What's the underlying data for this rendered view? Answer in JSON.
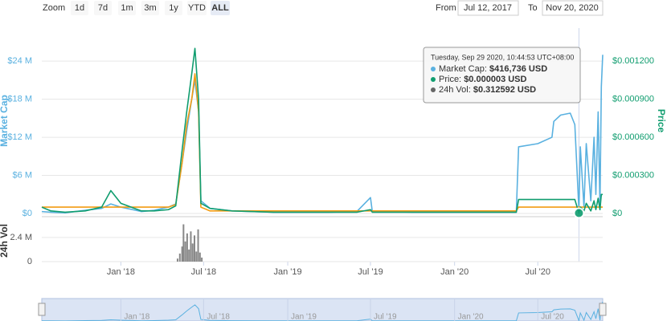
{
  "range_selector": {
    "zoom_label": "Zoom",
    "buttons": [
      "1d",
      "7d",
      "1m",
      "3m",
      "1y",
      "YTD",
      "ALL"
    ],
    "selected": "ALL",
    "from_label": "From",
    "from": "Jul 12, 2017",
    "to_label": "To",
    "to": "Nov 20, 2020"
  },
  "tooltip": {
    "title": "Tuesday, Sep 29 2020, 10:44:53 UTC+08:00",
    "items": [
      {
        "label": "Market Cap:",
        "value": "$416,736 USD",
        "color": "#5ab1e0"
      },
      {
        "label": "Price:",
        "value": "$0.000003 USD",
        "color": "#109d6f"
      },
      {
        "label": "24h Vol:",
        "value": "$0.312592 USD",
        "color": "#666666"
      }
    ]
  },
  "chart_data": [
    {
      "type": "line",
      "ylabel": "Market Cap",
      "y2label": "Price",
      "xlim": [
        "2017-07-12",
        "2020-11-20"
      ],
      "xticks": [
        {
          "value": "2018-01-01",
          "label": "Jan '18"
        },
        {
          "value": "2018-07-01",
          "label": "Jul '18"
        },
        {
          "value": "2019-01-01",
          "label": "Jan '19"
        },
        {
          "value": "2019-07-01",
          "label": "Jul '19"
        },
        {
          "value": "2020-01-01",
          "label": "Jan '20"
        },
        {
          "value": "2020-07-01",
          "label": "Jul '20"
        }
      ],
      "ylim": [
        0,
        29200000
      ],
      "yticks": [
        {
          "value": 0,
          "label": "$0"
        },
        {
          "value": 6000000,
          "label": "$6 M"
        },
        {
          "value": 12000000,
          "label": "$12 M"
        },
        {
          "value": 18000000,
          "label": "$18 M"
        },
        {
          "value": 24000000,
          "label": "$24 M"
        }
      ],
      "y2lim": [
        0,
        0.00146
      ],
      "y2ticks": [
        {
          "value": 0,
          "label": "$0"
        },
        {
          "value": 0.0003,
          "label": "$0.000300"
        },
        {
          "value": 0.0006,
          "label": "$0.000600"
        },
        {
          "value": 0.0009,
          "label": "$0.000900"
        },
        {
          "value": 0.0012,
          "label": "$0.001200"
        }
      ],
      "grid": true,
      "x": [
        "2017-07-12",
        "2017-08-01",
        "2017-09-01",
        "2017-10-15",
        "2017-11-20",
        "2017-12-10",
        "2018-01-01",
        "2018-02-15",
        "2018-03-15",
        "2018-04-15",
        "2018-05-01",
        "2018-05-15",
        "2018-05-25",
        "2018-06-05",
        "2018-06-12",
        "2018-06-20",
        "2018-06-25",
        "2018-07-15",
        "2018-09-01",
        "2018-12-01",
        "2019-04-01",
        "2019-06-01",
        "2019-07-01",
        "2019-07-05",
        "2019-10-01",
        "2020-01-01",
        "2020-05-15",
        "2020-05-20",
        "2020-07-01",
        "2020-08-01",
        "2020-08-05",
        "2020-08-20",
        "2020-09-10",
        "2020-09-20",
        "2020-09-29",
        "2020-10-02",
        "2020-10-10",
        "2020-10-15",
        "2020-10-25",
        "2020-11-01",
        "2020-11-05",
        "2020-11-10",
        "2020-11-14",
        "2020-11-17",
        "2020-11-20"
      ],
      "series": [
        {
          "color": "#5ab1e0",
          "axis": "y",
          "values": [
            300000,
            200000,
            100000,
            500000,
            800000,
            1500000,
            1000000,
            300000,
            500000,
            1000000,
            1500000,
            8000000,
            13000000,
            18000000,
            21000000,
            16000000,
            2000000,
            800000,
            400000,
            200000,
            200000,
            300000,
            2500000,
            300000,
            200000,
            200000,
            200000,
            10500000,
            11000000,
            12000000,
            14500000,
            15500000,
            15800000,
            14000000,
            416736,
            10500000,
            1000000,
            11000000,
            2000000,
            12000000,
            3000000,
            16000000,
            1000000,
            20000000,
            25000000
          ]
        },
        {
          "color": "#f39c12",
          "axis": "y2",
          "values": [
            5e-05,
            5e-05,
            5e-05,
            5e-05,
            5e-05,
            5e-05,
            5e-05,
            5e-05,
            5e-05,
            5e-05,
            7e-05,
            0.0004,
            0.0007,
            0.0009,
            0.0011,
            0.0008,
            5e-05,
            2e-05,
            2e-05,
            2e-05,
            2e-05,
            2e-05,
            2e-05,
            2e-05,
            2e-05,
            2e-05,
            2e-05,
            5e-05,
            5e-05,
            5e-05,
            5e-05,
            5e-05,
            5e-05,
            5e-05,
            5e-05,
            5e-05,
            5e-05,
            5e-05,
            5e-05,
            5e-05,
            5e-05,
            5e-05,
            5e-05,
            5e-05,
            5e-05
          ]
        },
        {
          "color": "#109d6f",
          "axis": "y2",
          "values": [
            5e-05,
            2e-05,
            1e-05,
            2e-05,
            5e-05,
            0.00018,
            8e-05,
            2e-05,
            2e-05,
            3e-05,
            6e-05,
            0.0005,
            0.0008,
            0.0011,
            0.0013,
            0.0009,
            8e-05,
            4e-05,
            2e-05,
            1e-05,
            1e-05,
            1e-05,
            3e-05,
            1e-05,
            1e-05,
            1e-05,
            1e-05,
            0.00011,
            0.00011,
            0.00011,
            0.00011,
            0.00011,
            0.00011,
            0.00011,
            3e-06,
            5e-05,
            2e-05,
            8e-05,
            2e-05,
            0.0001,
            3e-05,
            0.00012,
            3e-05,
            0.00015,
            0.00015
          ]
        }
      ],
      "highlight_index": 34
    },
    {
      "type": "bar",
      "ylabel": "24h Vol",
      "color": "#888888",
      "ylim": [
        0,
        4300000
      ],
      "yticks": [
        0,
        {
          "value": 2400000,
          "label": "2.4 M"
        }
      ],
      "x": [
        "2018-05-05",
        "2018-05-10",
        "2018-05-15",
        "2018-05-18",
        "2018-05-22",
        "2018-05-26",
        "2018-05-30",
        "2018-06-03",
        "2018-06-07",
        "2018-06-11",
        "2018-06-15",
        "2018-06-19",
        "2018-06-23",
        "2018-06-27"
      ],
      "values": [
        300000,
        800000,
        1500000,
        3700000,
        2000000,
        2800000,
        1200000,
        3000000,
        1800000,
        2600000,
        1000000,
        3200000,
        900000,
        400000
      ]
    }
  ]
}
